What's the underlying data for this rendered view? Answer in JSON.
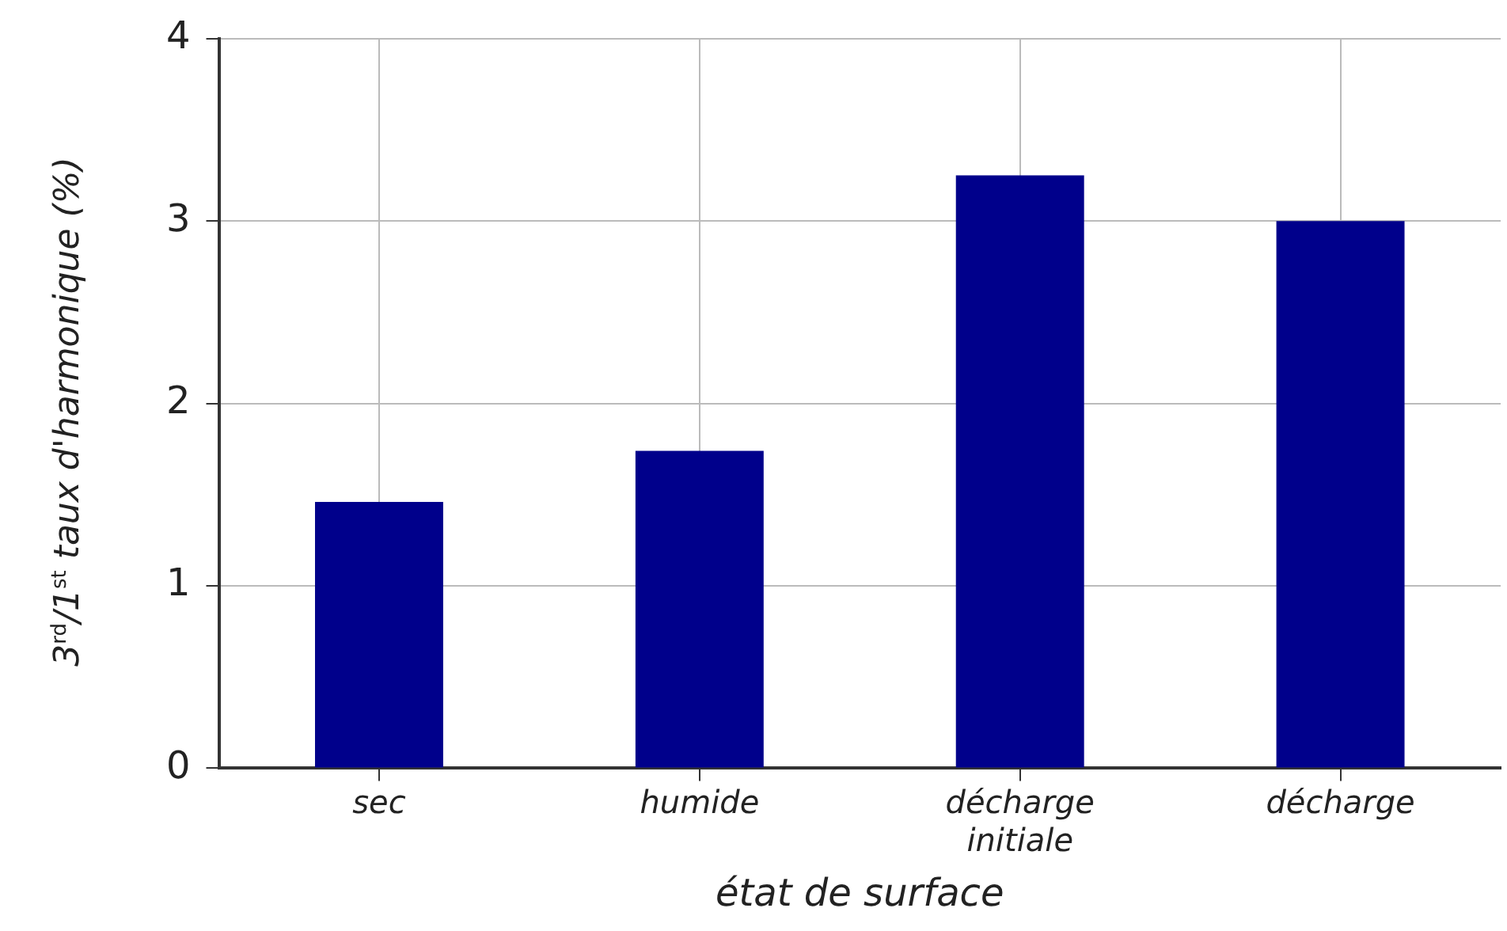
{
  "chart_data": {
    "type": "bar",
    "categories": [
      "sec",
      "humide",
      "décharge initiale",
      "décharge"
    ],
    "values": [
      1.46,
      1.74,
      3.25,
      3.0
    ],
    "color": "#00008b",
    "xlabel": "état de surface",
    "ylabel": "3$^{rd}$/1$^{st}$ taux d'harmonique (%)",
    "ylim": [
      0,
      4
    ],
    "yticks": [
      0,
      1,
      2,
      3,
      4
    ],
    "grid": true
  }
}
